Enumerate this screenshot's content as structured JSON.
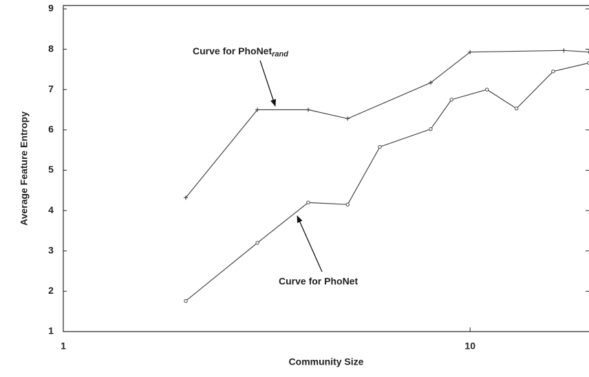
{
  "chart_data": {
    "type": "line",
    "x_label": "Community Size",
    "y_label": "Average Feature Entropy",
    "x_log": true,
    "xlim": [
      1,
      19.6
    ],
    "xticks": [
      1,
      10
    ],
    "ylim": [
      1,
      9.05
    ],
    "yticks": [
      1,
      2,
      3,
      4,
      5,
      6,
      7,
      8,
      9
    ],
    "annotations": [
      {
        "text": "Curve for PhoNet",
        "subscript": "rand"
      },
      {
        "text": "Curve for PhoNet"
      }
    ],
    "series": [
      {
        "name": "PhoNet rand",
        "color": "#444444",
        "marker": "plus",
        "x": [
          2,
          3,
          4,
          5,
          8,
          10,
          17,
          19.6
        ],
        "values": [
          4.32,
          6.5,
          6.5,
          6.28,
          7.17,
          7.93,
          7.97,
          7.93
        ]
      },
      {
        "name": "PhoNet",
        "color": "#444444",
        "marker": "circle",
        "x": [
          2,
          3,
          4,
          5,
          6,
          8,
          9,
          11,
          13,
          16,
          19.6
        ],
        "values": [
          1.76,
          3.2,
          4.2,
          4.15,
          5.58,
          6.02,
          6.75,
          7.0,
          6.53,
          7.45,
          7.66
        ]
      }
    ]
  }
}
